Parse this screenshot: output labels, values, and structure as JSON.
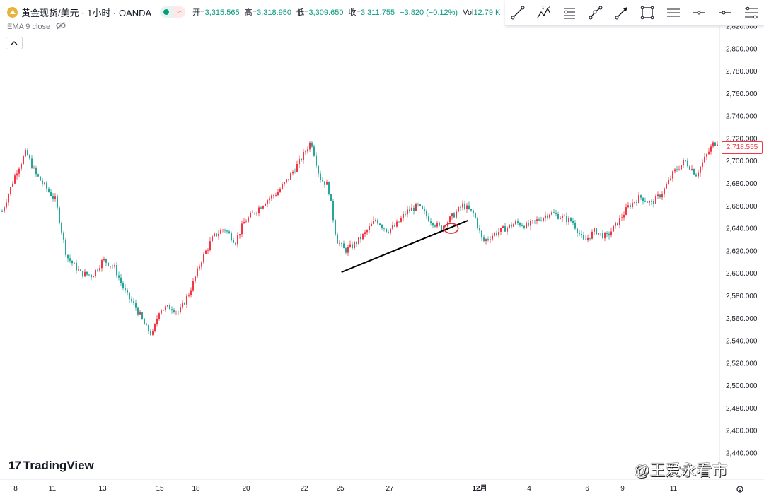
{
  "header": {
    "symbol_title": "黄金现货/美元 · 1小时 · OANDA",
    "open_label": "开=",
    "open_value": "3,315.565",
    "high_label": "高=",
    "high_value": "3,318.950",
    "low_label": "低=",
    "low_value": "3,309.650",
    "close_label": "收=",
    "close_value": "3,311.755",
    "change": "−3.820 (−0.12%)",
    "vol_label": "Vol",
    "vol_value": "12.79 K"
  },
  "indicator": {
    "label": "EMA 9 close"
  },
  "colors": {
    "up": "#f23645",
    "down": "#26a69a",
    "trendline": "#000000",
    "marker": "#e03030",
    "axis_text": "#131722"
  },
  "branding": {
    "logo_text": "TradingView",
    "watermark": "@王爱永看市"
  },
  "current_price": "2,718.555",
  "chart_data": {
    "type": "candlestick",
    "title": "",
    "xlabel": "",
    "ylabel": "",
    "ylim": [
      2430,
      2830
    ],
    "y_ticks": [
      2440,
      2460,
      2480,
      2500,
      2520,
      2540,
      2560,
      2580,
      2600,
      2620,
      2640,
      2660,
      2680,
      2700,
      2720,
      2740,
      2760,
      2780,
      2800,
      2820
    ],
    "y_tick_labels": [
      "2,440.000",
      "2,460.000",
      "2,480.000",
      "2,500.000",
      "2,520.000",
      "2,540.000",
      "2,560.000",
      "2,580.000",
      "2,600.000",
      "2,620.000",
      "2,640.000",
      "2,660.000",
      "2,680.000",
      "2,700.000",
      "2,720.000",
      "2,740.000",
      "2,760.000",
      "2,780.000",
      "2,800.000",
      "2,820.000"
    ],
    "x_tick_labels": [
      "8",
      "11",
      "13",
      "15",
      "18",
      "20",
      "22",
      "25",
      "27",
      "12月",
      "4",
      "6",
      "9",
      "11"
    ],
    "x_tick_index": [
      0,
      1,
      2,
      3,
      4,
      5,
      6,
      7,
      8,
      9,
      10,
      11,
      12,
      13
    ],
    "price_path": [
      [
        0,
        2655
      ],
      [
        0.5,
        2690
      ],
      [
        0.85,
        2708
      ],
      [
        1.2,
        2688
      ],
      [
        1.6,
        2675
      ],
      [
        1.9,
        2665
      ],
      [
        2.3,
        2615
      ],
      [
        2.8,
        2600
      ],
      [
        3.2,
        2598
      ],
      [
        3.6,
        2612
      ],
      [
        4.0,
        2605
      ],
      [
        4.4,
        2582
      ],
      [
        4.8,
        2568
      ],
      [
        5.1,
        2552
      ],
      [
        5.35,
        2545
      ],
      [
        5.6,
        2568
      ],
      [
        6.0,
        2570
      ],
      [
        6.3,
        2565
      ],
      [
        6.7,
        2585
      ],
      [
        7.1,
        2612
      ],
      [
        7.5,
        2632
      ],
      [
        7.9,
        2640
      ],
      [
        8.3,
        2628
      ],
      [
        8.6,
        2645
      ],
      [
        9.0,
        2655
      ],
      [
        9.4,
        2665
      ],
      [
        9.8,
        2672
      ],
      [
        10.2,
        2685
      ],
      [
        10.6,
        2700
      ],
      [
        11.0,
        2718
      ],
      [
        11.3,
        2685
      ],
      [
        11.6,
        2678
      ],
      [
        11.9,
        2630
      ],
      [
        12.2,
        2620
      ],
      [
        12.5,
        2625
      ],
      [
        12.9,
        2635
      ],
      [
        13.3,
        2648
      ],
      [
        13.7,
        2638
      ],
      [
        14.0,
        2642
      ],
      [
        14.4,
        2655
      ],
      [
        14.8,
        2660
      ],
      [
        15.2,
        2648
      ],
      [
        15.6,
        2640
      ],
      [
        16.0,
        2650
      ],
      [
        16.4,
        2661
      ],
      [
        16.8,
        2652
      ],
      [
        17.1,
        2628
      ],
      [
        17.5,
        2635
      ],
      [
        17.9,
        2640
      ],
      [
        18.3,
        2645
      ],
      [
        18.7,
        2642
      ],
      [
        19.1,
        2648
      ],
      [
        19.5,
        2654
      ],
      [
        19.9,
        2650
      ],
      [
        20.3,
        2646
      ],
      [
        20.7,
        2628
      ],
      [
        21.1,
        2638
      ],
      [
        21.5,
        2632
      ],
      [
        21.9,
        2645
      ],
      [
        22.3,
        2660
      ],
      [
        22.7,
        2668
      ],
      [
        23.1,
        2662
      ],
      [
        23.5,
        2672
      ],
      [
        23.9,
        2690
      ],
      [
        24.3,
        2700
      ],
      [
        24.7,
        2688
      ],
      [
        25.0,
        2702
      ],
      [
        25.3,
        2715
      ],
      [
        25.5,
        2718
      ]
    ],
    "trendline": {
      "start": [
        12.1,
        2601
      ],
      "end": [
        16.6,
        2647
      ]
    },
    "marker": {
      "at": [
        16.0,
        2640
      ]
    },
    "last_price": 2718.555
  }
}
